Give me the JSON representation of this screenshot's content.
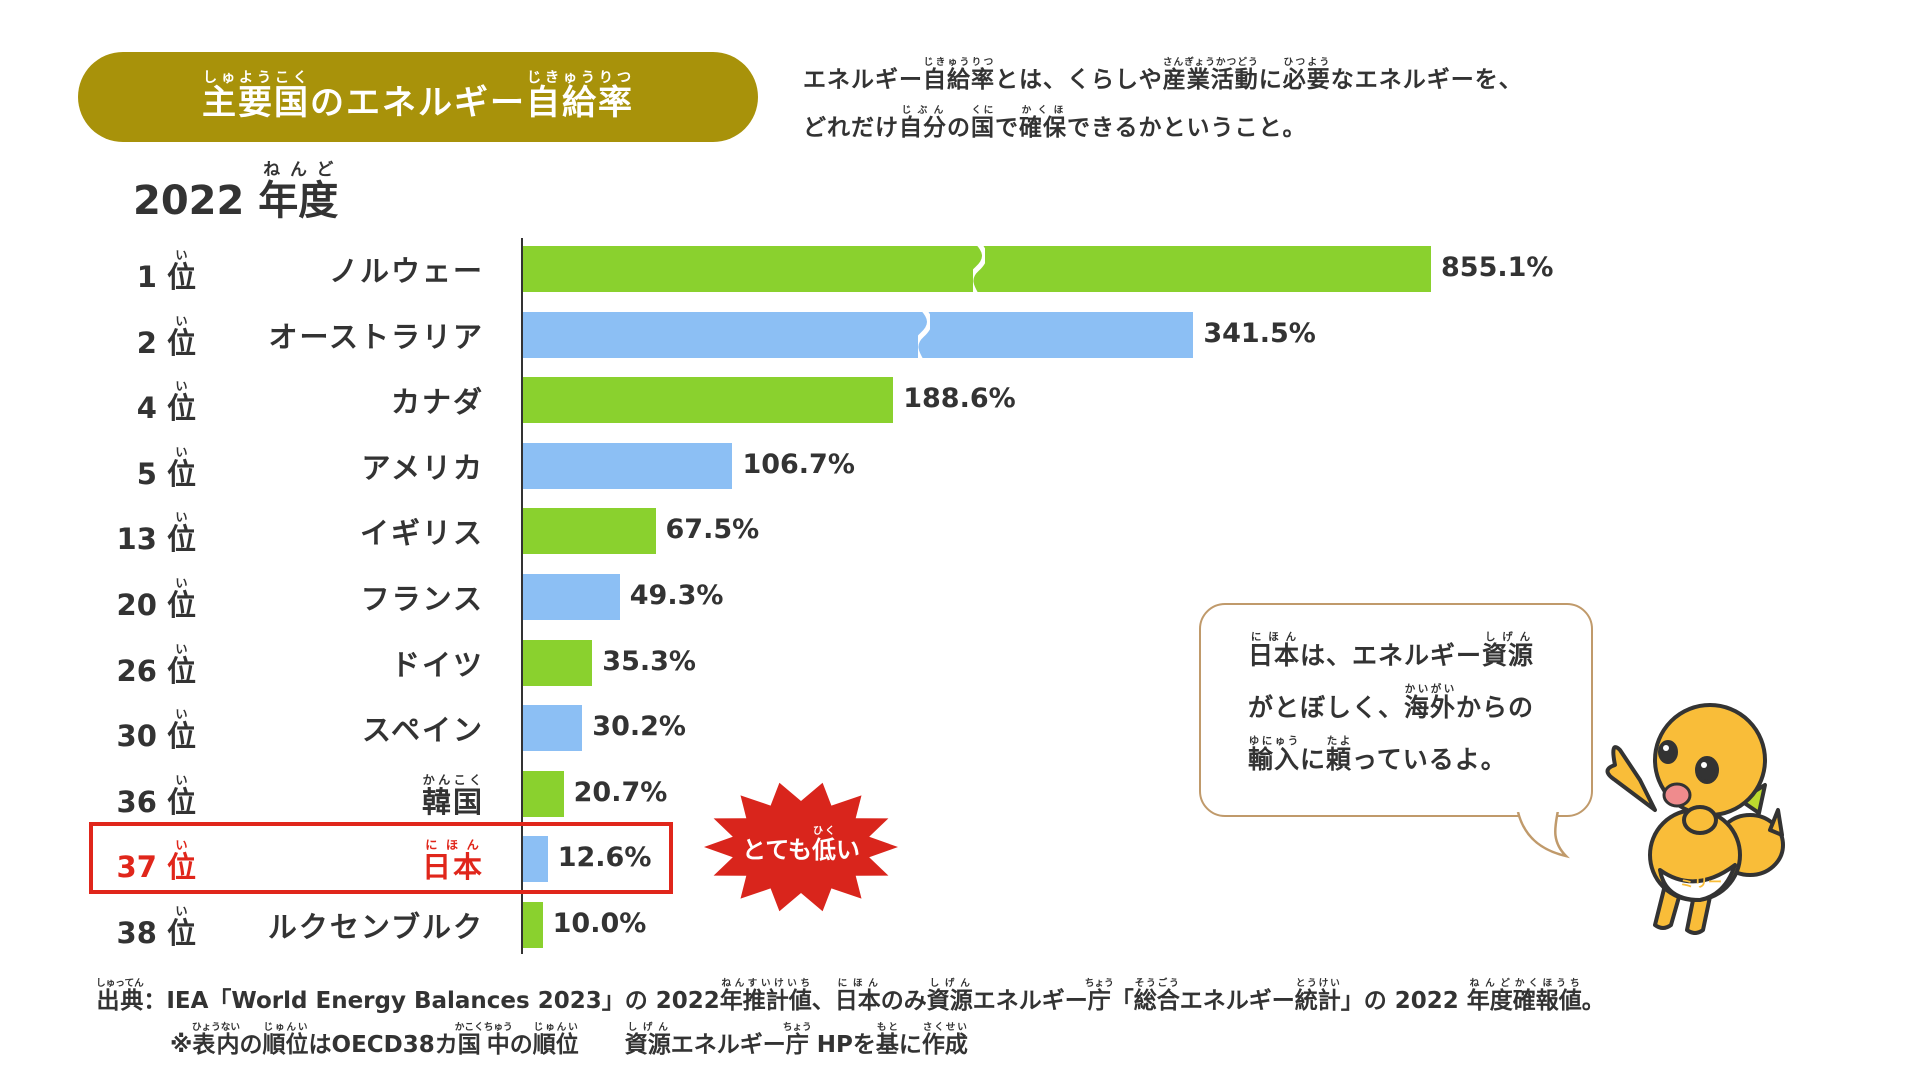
{
  "title": [
    {
      "t": "主要国",
      "r": "しゅようこく"
    },
    {
      "t": "のエネルギー"
    },
    {
      "t": "自給率",
      "r": "じきゅうりつ"
    }
  ],
  "description": {
    "line1": [
      {
        "t": "エネルギー"
      },
      {
        "t": "自給率",
        "r": "じきゅうりつ"
      },
      {
        "t": "とは、くらしや"
      },
      {
        "t": "産業活動",
        "r": "さんぎょうかつどう"
      },
      {
        "t": "に"
      },
      {
        "t": "必要",
        "r": "ひつよう"
      },
      {
        "t": "なエネルギーを、"
      }
    ],
    "line2": [
      {
        "t": "どれだけ"
      },
      {
        "t": "自分",
        "r": "じぶん"
      },
      {
        "t": "の"
      },
      {
        "t": "国",
        "r": "くに"
      },
      {
        "t": "で"
      },
      {
        "t": "確保",
        "r": "かくほ"
      },
      {
        "t": "できるかということ。"
      }
    ]
  },
  "year_label": [
    {
      "t": "2022 "
    },
    {
      "t": "年度",
      "r": "ねんど"
    }
  ],
  "chart_data": {
    "type": "bar",
    "orientation": "horizontal",
    "title": "主要国のエネルギー自給率",
    "subtitle": "2022年度",
    "axis_break": true,
    "rank_suffix": "位",
    "rank_suffix_ruby": "い",
    "categories": [
      "ノルウェー",
      "オーストラリア",
      "カナダ",
      "アメリカ",
      "イギリス",
      "フランス",
      "ドイツ",
      "スペイン",
      "韓国",
      "日本",
      "ルクセンブルク"
    ],
    "category_ruby": [
      "",
      "",
      "",
      "",
      "",
      "",
      "",
      "",
      "かんこく",
      "にほん",
      ""
    ],
    "ranks": [
      "1",
      "2",
      "4",
      "5",
      "13",
      "20",
      "26",
      "30",
      "36",
      "37",
      "38"
    ],
    "values": [
      855.1,
      341.5,
      188.6,
      106.7,
      67.5,
      49.3,
      35.3,
      30.2,
      20.7,
      12.6,
      10.0
    ],
    "value_labels": [
      "855.1%",
      "341.5%",
      "188.6%",
      "106.7%",
      "67.5%",
      "49.3%",
      "35.3%",
      "30.2%",
      "20.7%",
      "12.6%",
      "10.0%"
    ],
    "unit": "%",
    "highlight": "日本",
    "colors": [
      "#8ad12e",
      "#8cbff4"
    ]
  },
  "callout": [
    {
      "t": "とても"
    },
    {
      "t": "低",
      "r": "ひく"
    },
    {
      "t": "い"
    }
  ],
  "bubble": {
    "line1": [
      {
        "t": "日本",
        "r": "にほん"
      },
      {
        "t": "は、エネルギー"
      },
      {
        "t": "資源",
        "r": "しげん"
      }
    ],
    "line2": [
      {
        "t": "がとぼしく、"
      },
      {
        "t": "海外",
        "r": "かいがい"
      },
      {
        "t": "からの"
      }
    ],
    "line3": [
      {
        "t": "輸入",
        "r": "ゆにゅう"
      },
      {
        "t": "に"
      },
      {
        "t": "頼",
        "r": "たよ"
      },
      {
        "t": "っているよ。"
      }
    ]
  },
  "mascot_badge": "ミリー",
  "footer": {
    "line1": [
      {
        "t": "出典",
        "r": "しゅってん"
      },
      {
        "t": "：IEA「World Energy Balances 2023」の 2022"
      },
      {
        "t": "年推計値",
        "r": "ねんすいけいち"
      },
      {
        "t": "、"
      },
      {
        "t": "日本",
        "r": "にほん"
      },
      {
        "t": "のみ"
      },
      {
        "t": "資源",
        "r": "しげん"
      },
      {
        "t": "エネルギー"
      },
      {
        "t": "庁",
        "r": "ちょう"
      },
      {
        "t": "「"
      },
      {
        "t": "総合",
        "r": "そうごう"
      },
      {
        "t": "エネルギー"
      },
      {
        "t": "統計",
        "r": "とうけい"
      },
      {
        "t": "」の 2022 "
      },
      {
        "t": "年度",
        "r": "ねんど"
      },
      {
        "t": "確報値",
        "r": "かくほうち"
      },
      {
        "t": "。"
      }
    ],
    "line2": [
      {
        "t": "※"
      },
      {
        "t": "表内",
        "r": "ひょうない"
      },
      {
        "t": "の"
      },
      {
        "t": "順位",
        "r": "じゅんい"
      },
      {
        "t": "はOECD38カ"
      },
      {
        "t": "国中",
        "r": "かこくちゅう"
      },
      {
        "t": "の"
      },
      {
        "t": "順位",
        "r": "じゅんい"
      },
      {
        "t": "　　"
      },
      {
        "t": "資源",
        "r": "しげん"
      },
      {
        "t": "エネルギー"
      },
      {
        "t": "庁",
        "r": "ちょう"
      },
      {
        "t": " HPを"
      },
      {
        "t": "基",
        "r": "もと"
      },
      {
        "t": "に"
      },
      {
        "t": "作成",
        "r": "さくせい"
      }
    ]
  }
}
